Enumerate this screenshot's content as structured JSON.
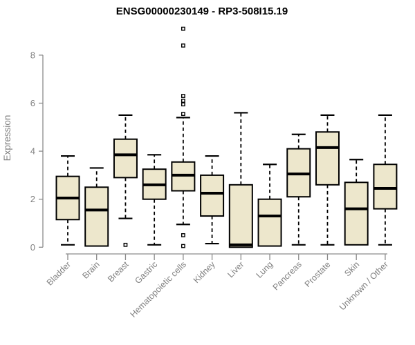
{
  "page": {
    "background": "#ffffff"
  },
  "colors": {
    "box_fill": "#EDE7CC",
    "box_stroke": "#000000",
    "median_color": "#000000",
    "whisker_color": "#000000",
    "outlier_fill": "#ffffff",
    "axis_line": "#8a8a8a",
    "axis_text": "#808080",
    "title_text": "#000000"
  },
  "chart_data": {
    "type": "boxplot",
    "title": "ENSG00000230149 - RP3-508I15.19",
    "ylabel": "Expression",
    "xlabel": "",
    "ylim": [
      0,
      9.3
    ],
    "yticks": [
      0,
      2,
      4,
      6,
      8
    ],
    "grid": false,
    "legend": false,
    "categories": [
      "Bladder",
      "Brain",
      "Breast",
      "Gastric",
      "Hematopoietic cells",
      "Kidney",
      "Liver",
      "Lung",
      "Pancreas",
      "Prostate",
      "Skin",
      "Unknown / Other"
    ],
    "boxes": [
      {
        "category": "Bladder",
        "whisker_low": 0.1,
        "q1": 1.15,
        "median": 2.05,
        "q3": 2.95,
        "whisker_high": 3.8,
        "outliers": []
      },
      {
        "category": "Brain",
        "whisker_low": 0.05,
        "q1": 0.05,
        "median": 1.55,
        "q3": 2.5,
        "whisker_high": 3.3,
        "outliers": []
      },
      {
        "category": "Breast",
        "whisker_low": 1.2,
        "q1": 2.9,
        "median": 3.85,
        "q3": 4.5,
        "whisker_high": 5.5,
        "outliers": [
          0.1
        ]
      },
      {
        "category": "Gastric",
        "whisker_low": 0.1,
        "q1": 2.0,
        "median": 2.6,
        "q3": 3.25,
        "whisker_high": 3.85,
        "outliers": []
      },
      {
        "category": "Hematopoietic cells",
        "whisker_low": 0.95,
        "q1": 2.35,
        "median": 3.0,
        "q3": 3.55,
        "whisker_high": 5.4,
        "outliers": [
          0.05,
          0.5,
          5.55,
          5.95,
          6.1,
          6.3,
          8.4,
          9.1
        ]
      },
      {
        "category": "Kidney",
        "whisker_low": 0.15,
        "q1": 1.3,
        "median": 2.25,
        "q3": 3.0,
        "whisker_high": 3.8,
        "outliers": []
      },
      {
        "category": "Liver",
        "whisker_low": 0.0,
        "q1": 0.0,
        "median": 0.1,
        "q3": 2.6,
        "whisker_high": 5.6,
        "outliers": []
      },
      {
        "category": "Lung",
        "whisker_low": 0.05,
        "q1": 0.05,
        "median": 1.3,
        "q3": 2.0,
        "whisker_high": 3.45,
        "outliers": []
      },
      {
        "category": "Pancreas",
        "whisker_low": 0.1,
        "q1": 2.1,
        "median": 3.05,
        "q3": 4.1,
        "whisker_high": 4.7,
        "outliers": []
      },
      {
        "category": "Prostate",
        "whisker_low": 0.1,
        "q1": 2.6,
        "median": 4.15,
        "q3": 4.8,
        "whisker_high": 5.5,
        "outliers": []
      },
      {
        "category": "Skin",
        "whisker_low": 0.1,
        "q1": 0.1,
        "median": 1.6,
        "q3": 2.7,
        "whisker_high": 3.65,
        "outliers": []
      },
      {
        "category": "Unknown / Other",
        "whisker_low": 0.1,
        "q1": 1.6,
        "median": 2.45,
        "q3": 3.45,
        "whisker_high": 5.5,
        "outliers": []
      }
    ]
  }
}
